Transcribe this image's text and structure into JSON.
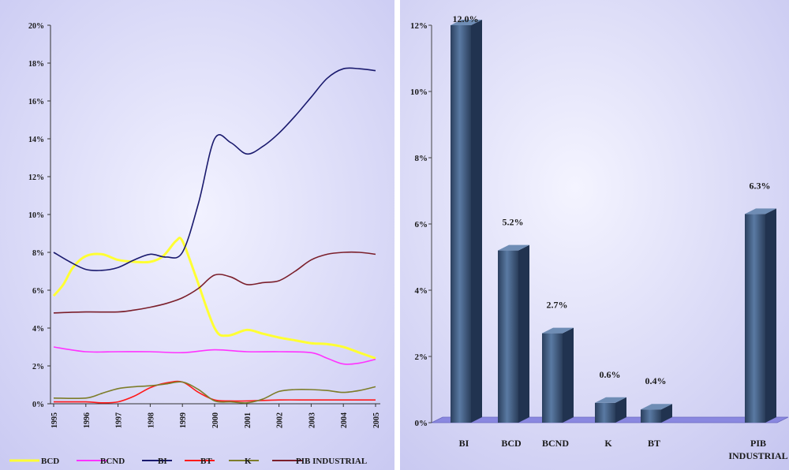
{
  "chart_data": [
    {
      "type": "line",
      "x": [
        "1995",
        "1996",
        "1997",
        "1998",
        "1999",
        "2000",
        "2001",
        "2002",
        "2003",
        "2004",
        "2005"
      ],
      "ylim": [
        0,
        20
      ],
      "y_ticks": [
        "0%",
        "2%",
        "4%",
        "6%",
        "8%",
        "10%",
        "12%",
        "14%",
        "16%",
        "18%",
        "20%"
      ],
      "grid": false,
      "legend_position": "bottom",
      "series": [
        {
          "name": "BCD",
          "color": "#ffff33",
          "x": [
            1995,
            1995.3,
            1995.6,
            1996,
            1996.5,
            1997,
            1997.5,
            1998,
            1998.4,
            1998.8,
            1999,
            1999.4,
            2000,
            2000.4,
            2001,
            2001.5,
            2002,
            2002.5,
            2003,
            2003.5,
            2004,
            2004.5,
            2005
          ],
          "values": [
            5.7,
            6.3,
            7.2,
            7.8,
            7.9,
            7.6,
            7.5,
            7.5,
            7.8,
            8.6,
            8.6,
            6.8,
            4.0,
            3.6,
            3.9,
            3.7,
            3.5,
            3.35,
            3.2,
            3.15,
            3.0,
            2.7,
            2.4
          ]
        },
        {
          "name": "BCND",
          "color": "#ff33ff",
          "x": [
            1995,
            1996,
            1997,
            1998,
            1999,
            2000,
            2001,
            2002,
            2003,
            2003.5,
            2004,
            2004.5,
            2005
          ],
          "values": [
            3.0,
            2.75,
            2.75,
            2.75,
            2.7,
            2.85,
            2.75,
            2.75,
            2.7,
            2.4,
            2.1,
            2.15,
            2.35
          ]
        },
        {
          "name": "BI",
          "color": "#1a1a6e",
          "x": [
            1995,
            1995.5,
            1996,
            1996.5,
            1997,
            1997.5,
            1998,
            1998.5,
            1999,
            1999.5,
            2000,
            2000.5,
            2001,
            2001.5,
            2002,
            2002.5,
            2003,
            2003.5,
            2004,
            2004.5,
            2005
          ],
          "values": [
            8.0,
            7.5,
            7.1,
            7.05,
            7.2,
            7.6,
            7.9,
            7.75,
            8.0,
            10.6,
            14.0,
            13.8,
            13.2,
            13.6,
            14.3,
            15.2,
            16.2,
            17.2,
            17.7,
            17.7,
            17.6
          ]
        },
        {
          "name": "BT",
          "color": "#ff1a1a",
          "x": [
            1995,
            1996,
            1996.5,
            1997,
            1997.5,
            1998,
            1998.5,
            1999,
            1999.5,
            2000,
            2000.5,
            2001,
            2002,
            2003,
            2004,
            2005
          ],
          "values": [
            0.1,
            0.1,
            0.05,
            0.1,
            0.4,
            0.85,
            1.1,
            1.15,
            0.6,
            0.2,
            0.15,
            0.15,
            0.2,
            0.2,
            0.2,
            0.2
          ]
        },
        {
          "name": "K",
          "color": "#7d7d2a",
          "x": [
            1995,
            1996,
            1996.5,
            1997,
            1997.5,
            1998,
            1998.5,
            1999,
            1999.5,
            2000,
            2000.5,
            2001,
            2001.5,
            2002,
            2002.5,
            2003,
            2003.5,
            2004,
            2004.5,
            2005
          ],
          "values": [
            0.3,
            0.3,
            0.55,
            0.8,
            0.9,
            0.95,
            1.05,
            1.15,
            0.75,
            0.15,
            0.1,
            0.05,
            0.25,
            0.65,
            0.75,
            0.75,
            0.7,
            0.6,
            0.7,
            0.9
          ]
        },
        {
          "name": "PIB INDUSTRIAL",
          "color": "#7b1f2b",
          "x": [
            1995,
            1996,
            1997,
            1997.5,
            1998,
            1998.5,
            1999,
            1999.5,
            2000,
            2000.5,
            2001,
            2001.5,
            2002,
            2002.5,
            2003,
            2003.5,
            2004,
            2004.5,
            2005
          ],
          "values": [
            4.8,
            4.85,
            4.85,
            4.95,
            5.1,
            5.3,
            5.6,
            6.1,
            6.8,
            6.7,
            6.3,
            6.4,
            6.5,
            7.0,
            7.6,
            7.9,
            8.0,
            8.0,
            7.9
          ]
        }
      ]
    },
    {
      "type": "bar",
      "categories": [
        "BI",
        "BCD",
        "BCND",
        "K",
        "BT",
        "PIB INDUSTRIAL"
      ],
      "values": [
        12.0,
        5.2,
        2.7,
        0.6,
        0.4,
        6.3
      ],
      "labels": [
        "12.0%",
        "5.2%",
        "2.7%",
        "0.6%",
        "0.4%",
        "6.3%"
      ],
      "ylim": [
        0,
        12
      ],
      "y_ticks": [
        "0%",
        "2%",
        "4%",
        "6%",
        "8%",
        "10%",
        "12%"
      ],
      "grid": false,
      "bar_color": "#3b5579",
      "floor_color": "#8a88e0"
    }
  ]
}
